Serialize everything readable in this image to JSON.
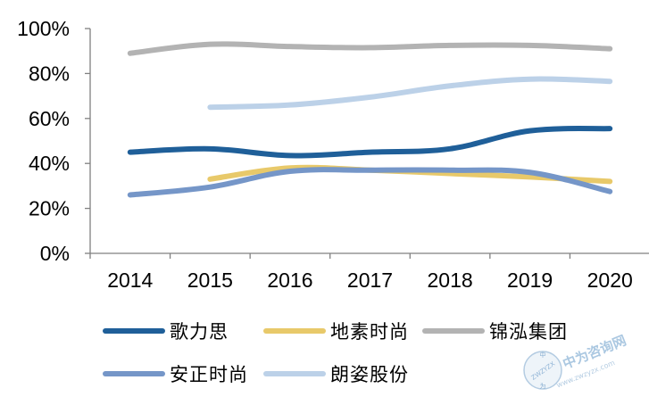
{
  "chart_data": {
    "type": "line",
    "title": "",
    "xlabel": "",
    "ylabel": "",
    "categories": [
      "2014",
      "2015",
      "2016",
      "2017",
      "2018",
      "2019",
      "2020"
    ],
    "y_ticks": [
      "0%",
      "20%",
      "40%",
      "60%",
      "80%",
      "100%"
    ],
    "ylim": [
      0,
      100
    ],
    "grid": false,
    "legend_position": "bottom",
    "series": [
      {
        "name": "歌力思",
        "color": "#1f5f99",
        "values": [
          45,
          46.5,
          43.5,
          45,
          46.5,
          54.5,
          55.5
        ]
      },
      {
        "name": "地素时尚",
        "color": "#e8c96a",
        "values": [
          null,
          33,
          38,
          37,
          35.5,
          34,
          32
        ]
      },
      {
        "name": "锦泓集团",
        "color": "#b3b3b3",
        "values": [
          89,
          93,
          92,
          91.5,
          92.5,
          92.5,
          91
        ]
      },
      {
        "name": "安正时尚",
        "color": "#7596c8",
        "values": [
          26,
          29.5,
          36.5,
          37,
          37,
          36,
          27.5
        ]
      },
      {
        "name": "朗姿股份",
        "color": "#bcd1e8",
        "values": [
          null,
          65,
          66,
          69.5,
          74.5,
          77.5,
          76.5
        ]
      }
    ]
  },
  "watermark": {
    "main_text": "中为咨询网",
    "url_text": "www.zwzyzx.com",
    "badge_text": "ZWZYZX",
    "badge_top": "中",
    "badge_bottom": "为"
  }
}
